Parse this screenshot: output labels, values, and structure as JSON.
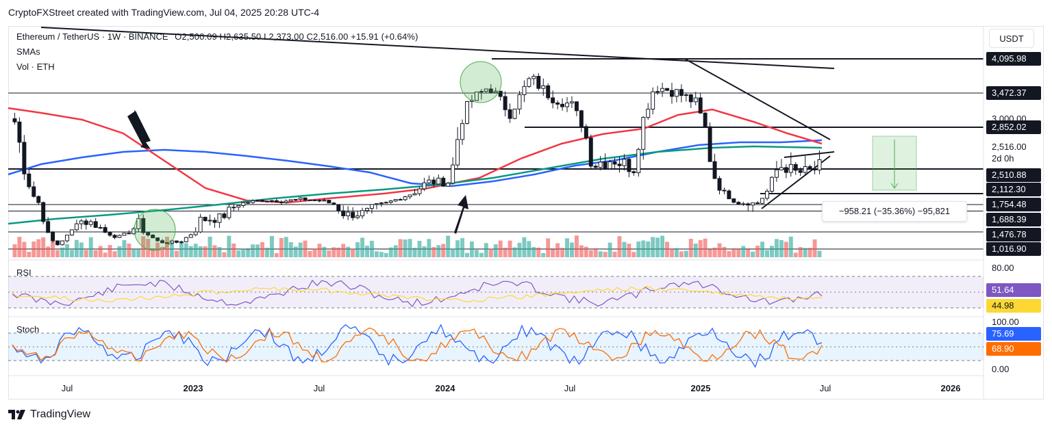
{
  "header": {
    "credit": "CryptoFXStreet created with TradingView.com, Jul 04, 2025 20:28 UTC-4"
  },
  "legend": {
    "symbol": "Ethereum / TetherUS · 1W · BINANCE",
    "ohlc": "O2,500.09  H2,635.50  L2,373.00  C2,516.00  +15.91 (+0.64%)",
    "sma_label": "SMAs",
    "vol_label": "Vol · ETH"
  },
  "currency_button": "USDT",
  "price_tags": [
    {
      "text": "4,095.98",
      "style": "dark"
    },
    {
      "text": "3,472.37",
      "style": "dark"
    },
    {
      "text": "3,000.00",
      "style": "plain"
    },
    {
      "text": "2,852.02",
      "style": "dark"
    },
    {
      "text": "2,516.00",
      "style": "plain"
    },
    {
      "text": "2d 0h",
      "style": "plain"
    },
    {
      "text": "2,510.88",
      "style": "dark"
    },
    {
      "text": "2,112.30",
      "style": "dark"
    },
    {
      "text": "1,754.48",
      "style": "dark"
    },
    {
      "text": "1,688.39",
      "style": "dark"
    },
    {
      "text": "1,476.78",
      "style": "dark"
    },
    {
      "text": "1,016.90",
      "style": "dark"
    }
  ],
  "measure_label": "−958.21 (−35.36%) −95,821",
  "rsi": {
    "label": "RSI",
    "axis_top": "80.00",
    "rsi_value": "51.64",
    "ma_value": "44.98"
  },
  "stoch": {
    "label": "Stoch",
    "axis_top": "100.00",
    "axis_bottom": "0.00",
    "k_value": "75.69",
    "d_value": "68.90"
  },
  "x_axis": [
    "Jul",
    "2023",
    "Jul",
    "2024",
    "Jul",
    "2025",
    "Jul",
    "2026"
  ],
  "footer": "TradingView",
  "colors": {
    "sma_red": "#f23645",
    "sma_blue": "#2962ff",
    "sma_green": "#089981",
    "candle": "#131722",
    "vol_up": "#26a69a",
    "vol_down": "#ef5350",
    "rsi_line": "#7e57c2",
    "rsi_ma": "#fdd835",
    "stoch_k": "#2962ff",
    "stoch_d": "#ff6d00"
  },
  "chart_data": {
    "type": "candlestick",
    "title": "Ethereum / TetherUS · 1W · BINANCE",
    "ylim": [
      1000,
      4300
    ],
    "horizontal_levels": [
      4095.98,
      3472.37,
      2852.02,
      2510.88,
      2112.3,
      1754.48,
      1688.39,
      1476.78,
      1016.9
    ],
    "last_close": 2516.0,
    "price_path": [
      {
        "x": "2022-04",
        "close": 2950
      },
      {
        "x": "2022-05",
        "close": 1950
      },
      {
        "x": "2022-06",
        "close": 1100
      },
      {
        "x": "2022-07",
        "close": 1600
      },
      {
        "x": "2022-08",
        "close": 1550
      },
      {
        "x": "2022-09",
        "close": 1330
      },
      {
        "x": "2022-10",
        "close": 1570
      },
      {
        "x": "2022-11",
        "close": 1200
      },
      {
        "x": "2022-12",
        "close": 1200
      },
      {
        "x": "2023-01",
        "close": 1600
      },
      {
        "x": "2023-02",
        "close": 1620
      },
      {
        "x": "2023-03",
        "close": 1800
      },
      {
        "x": "2023-04",
        "close": 1900
      },
      {
        "x": "2023-05",
        "close": 1870
      },
      {
        "x": "2023-06",
        "close": 1930
      },
      {
        "x": "2023-07",
        "close": 1860
      },
      {
        "x": "2023-08",
        "close": 1650
      },
      {
        "x": "2023-09",
        "close": 1670
      },
      {
        "x": "2023-10",
        "close": 1800
      },
      {
        "x": "2023-11",
        "close": 2050
      },
      {
        "x": "2023-12",
        "close": 2300
      },
      {
        "x": "2024-01",
        "close": 2300
      },
      {
        "x": "2024-02",
        "close": 3300
      },
      {
        "x": "2024-03",
        "close": 3600
      },
      {
        "x": "2024-04",
        "close": 3100
      },
      {
        "x": "2024-05",
        "close": 3750
      },
      {
        "x": "2024-06",
        "close": 3400
      },
      {
        "x": "2024-07",
        "close": 3250
      },
      {
        "x": "2024-08",
        "close": 2550
      },
      {
        "x": "2024-09",
        "close": 2600
      },
      {
        "x": "2024-10",
        "close": 2500
      },
      {
        "x": "2024-11",
        "close": 3600
      },
      {
        "x": "2024-12",
        "close": 3500
      },
      {
        "x": "2025-01",
        "close": 3300
      },
      {
        "x": "2025-02",
        "close": 2300
      },
      {
        "x": "2025-03",
        "close": 1800
      },
      {
        "x": "2025-04",
        "close": 1800
      },
      {
        "x": "2025-05",
        "close": 2550
      },
      {
        "x": "2025-06",
        "close": 2450
      },
      {
        "x": "2025-07",
        "close": 2516
      }
    ],
    "xlabel": "",
    "ylabel": ""
  }
}
